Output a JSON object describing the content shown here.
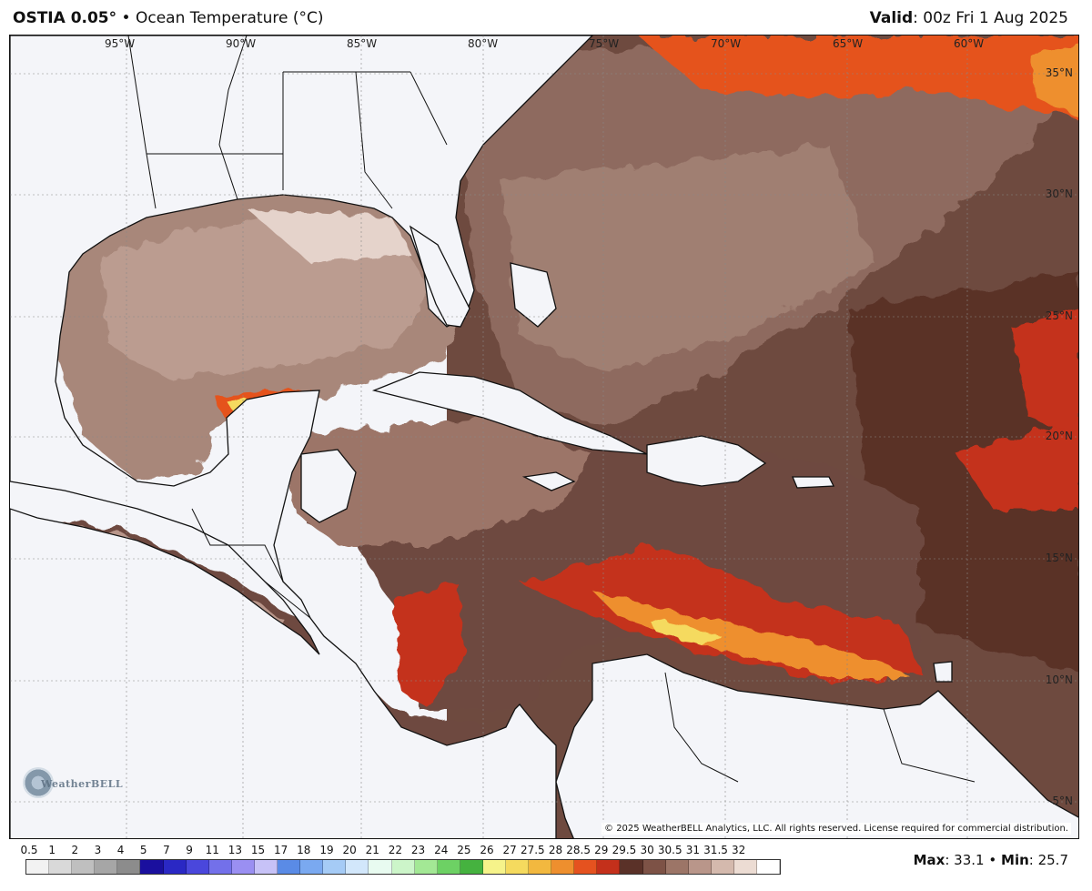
{
  "header": {
    "brand": "OSTIA 0.05°",
    "separator": "•",
    "subtitle": "Ocean Temperature (°C)",
    "valid_label": "Valid",
    "valid_value": ": 00z Fri 1 Aug 2025"
  },
  "map": {
    "longitude_labels": [
      "95°W",
      "90°W",
      "85°W",
      "80°W",
      "75°W",
      "70°W",
      "65°W",
      "60°W"
    ],
    "latitude_labels": [
      "35°N",
      "30°N",
      "25°N",
      "20°N",
      "15°N",
      "10°N",
      "5°N"
    ],
    "copyright": "© 2025 WeatherBELL Analytics, LLC. All rights reserved. License required for commercial distribution.",
    "watermark": "WeatherBELL"
  },
  "legend": {
    "ticks": [
      "0.5",
      "1",
      "2",
      "3",
      "4",
      "5",
      "7",
      "9",
      "11",
      "13",
      "15",
      "17",
      "18",
      "19",
      "20",
      "21",
      "22",
      "23",
      "24",
      "25",
      "26",
      "27",
      "27.5",
      "28",
      "28.5",
      "29",
      "29.5",
      "30",
      "30.5",
      "31",
      "31.5",
      "32"
    ],
    "colors": [
      "#f2f2f2",
      "#d9d9d9",
      "#bfbfbf",
      "#a6a6a6",
      "#8c8c8c",
      "#1a0f9e",
      "#2a28c4",
      "#4a47dc",
      "#7370ea",
      "#9a8ff2",
      "#c7c2f7",
      "#5a8be6",
      "#7aa9f0",
      "#a5cbf6",
      "#d2e7fb",
      "#e8fbf0",
      "#ccf5c9",
      "#a3e895",
      "#6dd164",
      "#45b23f",
      "#f6f38a",
      "#f5da5e",
      "#f2b83f",
      "#ee8f2e",
      "#e5521f",
      "#c4301b",
      "#5a3128",
      "#7d5246",
      "#9c7567",
      "#b9968a",
      "#d4b9ad",
      "#ecdcd3"
    ],
    "colorbar_last": "#ffffff"
  },
  "stats": {
    "max_label": "Max",
    "max_value": ": 33.1",
    "separator": "•",
    "min_label": "Min",
    "min_value": ": 25.7"
  }
}
